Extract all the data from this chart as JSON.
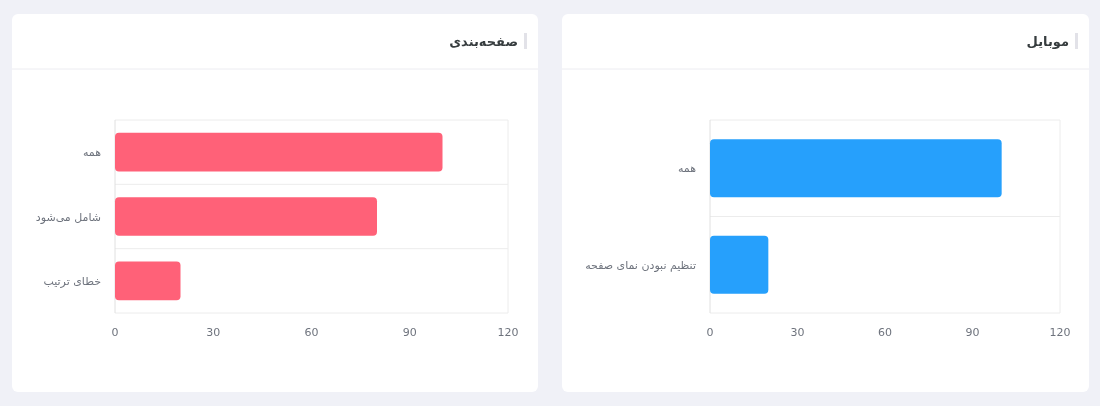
{
  "chart_data": [
    {
      "type": "bar",
      "orientation": "horizontal",
      "title": "صفحه‌بندی",
      "categories": [
        "همه",
        "شامل می‌شود",
        "خطای ترتیب"
      ],
      "values": [
        100,
        80,
        20
      ],
      "color": "#ff6178",
      "xlim": [
        0,
        120
      ],
      "xticks": [
        0,
        30,
        60,
        90,
        120
      ]
    },
    {
      "type": "bar",
      "orientation": "horizontal",
      "title": "موبایل",
      "categories": [
        "همه",
        "تنظیم نبودن نمای صفحه"
      ],
      "values": [
        100,
        20
      ],
      "color": "#26a0fc",
      "xlim": [
        0,
        120
      ],
      "xticks": [
        0,
        30,
        60,
        90,
        120
      ]
    }
  ]
}
